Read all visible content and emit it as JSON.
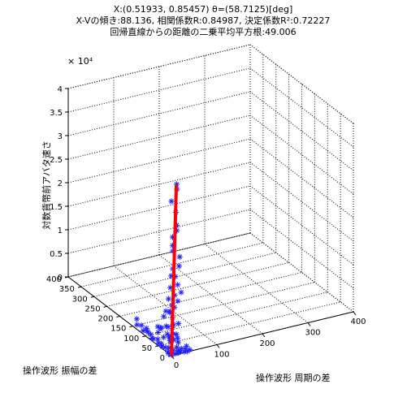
{
  "chart_data": {
    "type": "scatter",
    "title_lines": [
      "X:(0.51933, 0.85457)  θ=(58.7125)[deg]",
      "X-Vの傾き:88.136, 相関係数R:0.84987, 決定係数R²:0.72227",
      "回帰直線からの距離の二乗平均平方根:49.006"
    ],
    "xlabel": "操作波形 周期の差",
    "ylabel": "操作波形 振幅の差",
    "zlabel": "対数貨幣前アバタ速さ",
    "z_exponent_label": "× 10⁴",
    "xlim": [
      0,
      400
    ],
    "ylim": [
      0,
      400
    ],
    "zlim": [
      0,
      40000
    ],
    "x_ticks": [
      "0",
      "100",
      "200",
      "300",
      "400"
    ],
    "y_ticks": [
      "0",
      "50",
      "100",
      "150",
      "200",
      "250",
      "300",
      "350",
      "400"
    ],
    "z_ticks": [
      "0",
      "0.5",
      "1",
      "1.5",
      "2",
      "2.5",
      "3",
      "3.5",
      "4"
    ],
    "grid": true,
    "marker": "asterisk",
    "marker_color": "#2020ff",
    "line_color": "#ff0000",
    "regression_line": [
      [
        0,
        0,
        0
      ],
      [
        16,
        9,
        35500
      ]
    ],
    "points": [
      [
        0,
        12,
        0
      ],
      [
        2,
        3,
        0
      ],
      [
        5,
        8,
        0
      ],
      [
        10,
        4,
        0
      ],
      [
        18,
        5,
        0
      ],
      [
        24,
        7,
        0
      ],
      [
        30,
        3,
        0
      ],
      [
        36,
        2,
        0
      ],
      [
        44,
        6,
        0
      ],
      [
        3,
        18,
        0
      ],
      [
        8,
        24,
        500
      ],
      [
        12,
        14,
        300
      ],
      [
        20,
        9,
        200
      ],
      [
        28,
        11,
        400
      ],
      [
        35,
        8,
        300
      ],
      [
        40,
        12,
        600
      ],
      [
        15,
        2,
        200
      ],
      [
        22,
        18,
        500
      ],
      [
        4,
        30,
        400
      ],
      [
        1,
        38,
        300
      ],
      [
        3,
        45,
        600
      ],
      [
        2,
        54,
        300
      ],
      [
        5,
        62,
        800
      ],
      [
        1,
        72,
        500
      ],
      [
        4,
        82,
        200
      ],
      [
        2,
        94,
        1000
      ],
      [
        6,
        105,
        700
      ],
      [
        3,
        115,
        400
      ],
      [
        8,
        130,
        800
      ],
      [
        5,
        142,
        500
      ],
      [
        10,
        152,
        1200
      ],
      [
        12,
        118,
        600
      ],
      [
        7,
        92,
        500
      ],
      [
        15,
        78,
        1300
      ],
      [
        18,
        62,
        900
      ],
      [
        22,
        48,
        1500
      ],
      [
        28,
        40,
        1100
      ],
      [
        32,
        30,
        800
      ],
      [
        16,
        34,
        2000
      ],
      [
        10,
        20,
        1800
      ],
      [
        6,
        16,
        2400
      ],
      [
        14,
        40,
        2600
      ],
      [
        20,
        28,
        3000
      ],
      [
        26,
        22,
        2200
      ],
      [
        8,
        56,
        3400
      ],
      [
        12,
        74,
        2800
      ],
      [
        4,
        46,
        3800
      ],
      [
        18,
        12,
        3600
      ],
      [
        24,
        36,
        4200
      ],
      [
        10,
        30,
        4600
      ],
      [
        2,
        24,
        5200
      ],
      [
        14,
        18,
        5600
      ],
      [
        20,
        8,
        6000
      ],
      [
        6,
        40,
        6500
      ],
      [
        16,
        50,
        7000
      ],
      [
        8,
        10,
        7500
      ],
      [
        12,
        26,
        8000
      ],
      [
        4,
        14,
        8500
      ],
      [
        18,
        30,
        9000
      ],
      [
        10,
        6,
        9800
      ],
      [
        22,
        14,
        10500
      ],
      [
        6,
        22,
        11000
      ],
      [
        14,
        12,
        12000
      ],
      [
        26,
        8,
        12500
      ],
      [
        8,
        18,
        13500
      ],
      [
        16,
        4,
        14500
      ],
      [
        20,
        20,
        15500
      ],
      [
        4,
        8,
        16500
      ],
      [
        12,
        16,
        17500
      ],
      [
        18,
        2,
        18500
      ],
      [
        24,
        10,
        20000
      ],
      [
        10,
        12,
        21500
      ],
      [
        6,
        6,
        23000
      ],
      [
        14,
        20,
        24000
      ],
      [
        20,
        14,
        25500
      ],
      [
        16,
        8,
        27000
      ],
      [
        12,
        4,
        30000
      ],
      [
        8,
        14,
        32000
      ],
      [
        18,
        10,
        34500
      ],
      [
        15,
        6,
        35800
      ]
    ]
  }
}
